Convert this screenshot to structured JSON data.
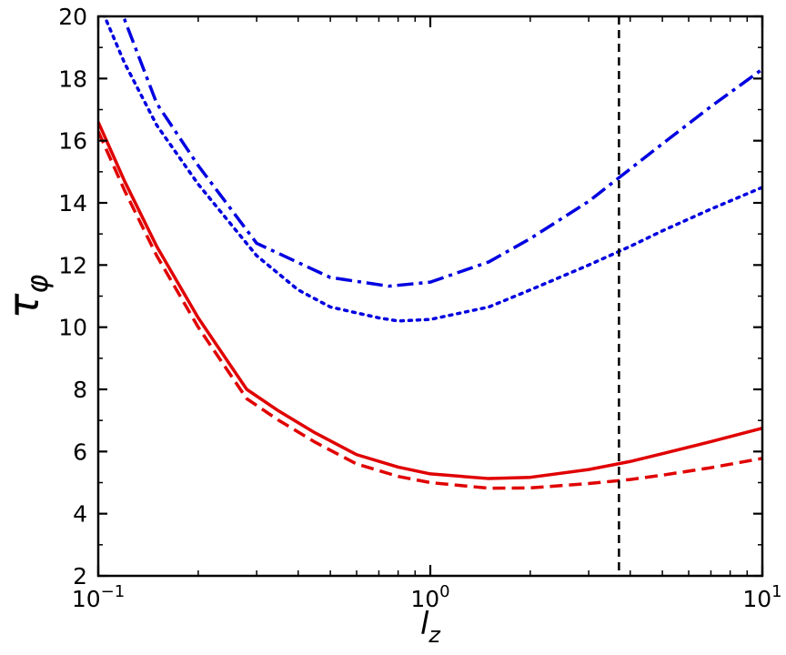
{
  "chart_data": {
    "type": "line",
    "xscale": "log",
    "xlim": [
      0.1,
      10
    ],
    "ylim": [
      2,
      20
    ],
    "grid": false,
    "xlabel": "l_z",
    "ylabel": "τ_φ",
    "xticks": [
      {
        "value": 0.1,
        "base": "10",
        "exp": "−1"
      },
      {
        "value": 1,
        "base": "10",
        "exp": "0"
      },
      {
        "value": 10,
        "base": "10",
        "exp": "1"
      }
    ],
    "yticks": [
      {
        "value": 2,
        "label": "2"
      },
      {
        "value": 4,
        "label": "4"
      },
      {
        "value": 6,
        "label": "6"
      },
      {
        "value": 8,
        "label": "8"
      },
      {
        "value": 10,
        "label": "10"
      },
      {
        "value": 12,
        "label": "12"
      },
      {
        "value": 14,
        "label": "14"
      },
      {
        "value": 16,
        "label": "16"
      },
      {
        "value": 18,
        "label": "18"
      },
      {
        "value": 20,
        "label": "20"
      }
    ],
    "vline": {
      "x": 3.7,
      "color": "#000000",
      "style": "dashed"
    },
    "series": [
      {
        "color": "#0000e0",
        "style": "dashdot",
        "x": [
          0.11,
          0.12,
          0.15,
          0.2,
          0.3,
          0.5,
          0.75,
          1.0,
          1.5,
          2.0,
          3.0,
          5.0,
          7.0,
          10.0
        ],
        "y": [
          20.5,
          19.9,
          17.2,
          15.2,
          12.7,
          11.6,
          11.32,
          11.45,
          12.1,
          12.85,
          14.05,
          15.9,
          17.1,
          18.3
        ]
      },
      {
        "color": "#0000e0",
        "style": "dotted",
        "x": [
          0.1,
          0.105,
          0.12,
          0.15,
          0.2,
          0.3,
          0.4,
          0.5,
          0.7,
          0.8,
          1.0,
          1.5,
          2.0,
          3.0,
          4.0,
          5.0,
          7.0,
          10.0
        ],
        "y": [
          20.3,
          19.95,
          18.5,
          16.5,
          14.6,
          12.3,
          11.2,
          10.65,
          10.3,
          10.2,
          10.25,
          10.65,
          11.2,
          12.0,
          12.6,
          13.1,
          13.8,
          14.5
        ]
      },
      {
        "color": "#e00000",
        "style": "solid",
        "x": [
          0.1,
          0.12,
          0.15,
          0.2,
          0.28,
          0.35,
          0.45,
          0.6,
          0.8,
          1.0,
          1.5,
          2.0,
          3.0,
          4.0,
          5.0,
          7.0,
          10.0
        ],
        "y": [
          16.6,
          14.7,
          12.6,
          10.3,
          8.0,
          7.3,
          6.6,
          5.9,
          5.5,
          5.28,
          5.13,
          5.17,
          5.42,
          5.68,
          5.93,
          6.32,
          6.75
        ]
      },
      {
        "color": "#e00000",
        "style": "dashed",
        "x": [
          0.1,
          0.12,
          0.15,
          0.2,
          0.28,
          0.35,
          0.45,
          0.6,
          0.8,
          1.0,
          1.5,
          2.0,
          3.0,
          4.0,
          5.0,
          7.0,
          10.0
        ],
        "y": [
          16.3,
          14.4,
          12.3,
          10.0,
          7.7,
          7.0,
          6.3,
          5.6,
          5.2,
          5.0,
          4.82,
          4.83,
          4.97,
          5.1,
          5.24,
          5.48,
          5.78
        ]
      }
    ]
  }
}
